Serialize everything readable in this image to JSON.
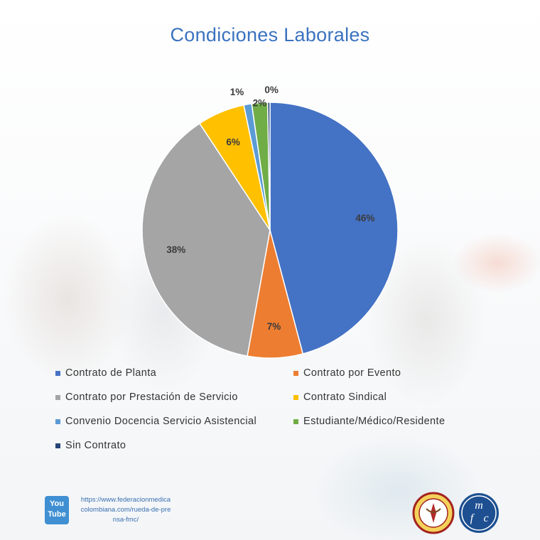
{
  "chart_data": {
    "type": "pie",
    "title": "Condiciones Laborales",
    "legend_position": "bottom",
    "slices": [
      {
        "label": "Contrato de Planta",
        "value": 46,
        "display": "46%",
        "color": "#4472c4"
      },
      {
        "label": "Contrato por Evento",
        "value": 7,
        "display": "7%",
        "color": "#ed7d31"
      },
      {
        "label": "Contrato por Prestación de Servicio",
        "value": 38,
        "display": "38%",
        "color": "#a5a5a5"
      },
      {
        "label": "Contrato Sindical",
        "value": 6,
        "display": "6%",
        "color": "#ffc000"
      },
      {
        "label": "Convenio Docencia Servicio Asistencial",
        "value": 1,
        "display": "1%",
        "color": "#5b9bd5"
      },
      {
        "label": "Estudiante/Médico/Residente",
        "value": 2,
        "display": "2%",
        "color": "#70ad47"
      },
      {
        "label": "Sin Contrato",
        "value": 0,
        "display": "0%",
        "color": "#264478"
      }
    ]
  },
  "footer": {
    "youtube_icon": "youtube-icon",
    "youtube_text": "You Tube",
    "link": "https://www.federacionmedicacolombiana.com/rueda-de-prensa-fmc/",
    "logo_left": "circular-seal-logo",
    "logo_right": "fmc-logo",
    "fmc_letters": "mfc"
  }
}
